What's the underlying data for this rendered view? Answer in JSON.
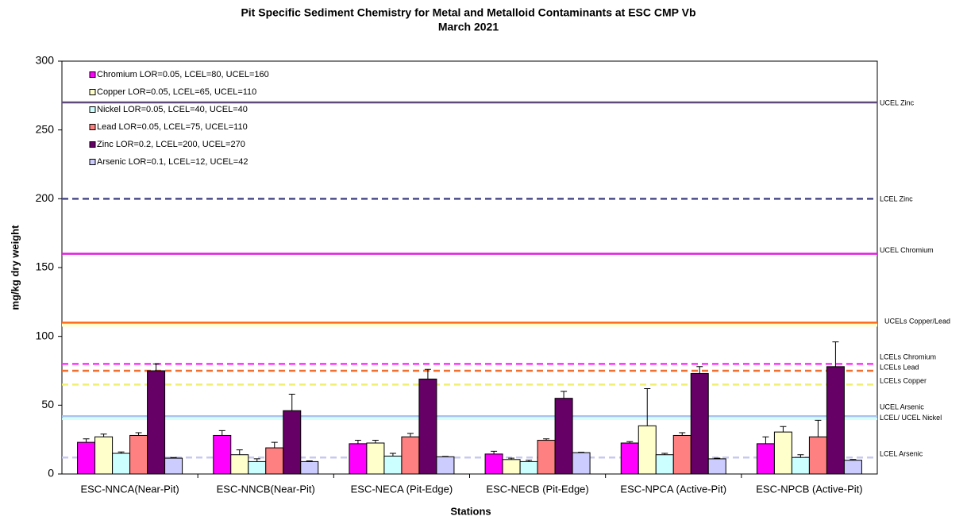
{
  "chart_data": {
    "type": "bar",
    "title": "Pit Specific Sediment Chemistry for Metal and Metalloid Contaminants at ESC CMP Vb",
    "subtitle": "March 2021",
    "x_label": "Stations",
    "y_label": "mg/kg dry weight",
    "categories": [
      "ESC-NNCA(Near-Pit)",
      "ESC-NNCB(Near-Pit)",
      "ESC-NECA (Pit-Edge)",
      "ESC-NECB (Pit-Edge)",
      "ESC-NPCA (Active-Pit)",
      "ESC-NPCB (Active-Pit)"
    ],
    "series": [
      {
        "name": "Chromium LOR=0.05, LCEL=80, UCEL=160",
        "color": "#ff00ff",
        "values": [
          23,
          28,
          22,
          14.5,
          22.5,
          22
        ],
        "errors": [
          2.5,
          3.5,
          2.5,
          2,
          1,
          5
        ]
      },
      {
        "name": "Copper LOR=0.05, LCEL=65, UCEL=110",
        "color": "#ffffcc",
        "values": [
          27,
          14,
          22.5,
          10.5,
          35,
          30.5
        ],
        "errors": [
          2,
          3.5,
          2,
          1,
          27,
          4
        ]
      },
      {
        "name": "Nickel LOR=0.05, LCEL=40, UCEL=40",
        "color": "#ccffff",
        "values": [
          15,
          9,
          13,
          9,
          14,
          12
        ],
        "errors": [
          1,
          2,
          2,
          1,
          1,
          2
        ]
      },
      {
        "name": "Lead LOR=0.05, LCEL=75, UCEL=110",
        "color": "#ff8080",
        "values": [
          28,
          19,
          27,
          24.5,
          28,
          27
        ],
        "errors": [
          2,
          4,
          2.5,
          1,
          2,
          12
        ]
      },
      {
        "name": "Zinc LOR=0.2, LCEL=200, UCEL=270",
        "color": "#660066",
        "values": [
          75,
          46,
          69,
          55,
          73,
          78
        ],
        "errors": [
          5,
          12,
          7,
          5,
          5,
          18
        ]
      },
      {
        "name": "Arsenic LOR=0.1, LCEL=12, UCEL=42",
        "color": "#ccccff",
        "values": [
          11.5,
          9,
          12.5,
          15.5,
          11,
          10
        ],
        "errors": [
          0.5,
          0.5,
          0.3,
          0.3,
          0.5,
          0.5
        ]
      }
    ],
    "reference_lines": [
      {
        "value": 270,
        "label": "UCEL Zinc",
        "color": "#604a7b",
        "dashed": false
      },
      {
        "value": 200,
        "label": "LCEL Zinc",
        "color": "#4b4b8a",
        "dashed": true
      },
      {
        "value": 160,
        "label": "UCEL Chromium",
        "color": "#e020e0",
        "dashed": false
      },
      {
        "value": 110,
        "label": "UCELs Copper/Lead",
        "color": "#ff6a1a",
        "band_color": "#ffffcc",
        "dashed": false
      },
      {
        "value": 80,
        "label": "LCELs Chromium",
        "color": "#ff33ff",
        "dashed": true
      },
      {
        "value": 75,
        "label": "LCELs Lead",
        "color": "#f07030",
        "dashed": true
      },
      {
        "value": 65,
        "label": "LCELs Copper",
        "color": "#f0f070",
        "dashed": true
      },
      {
        "value": 42,
        "label": "UCEL Arsenic",
        "color": "#a8c4f0",
        "dashed": false
      },
      {
        "value": 40,
        "label": "LCEL/ UCEL Nickel",
        "color": "#ccffff",
        "dashed": false
      },
      {
        "value": 12,
        "label": "LCEL Arsenic",
        "color": "#c8c8f0",
        "dashed": true
      }
    ],
    "ylim": [
      0,
      300
    ],
    "yticks": [
      0,
      50,
      100,
      150,
      200,
      250,
      300
    ],
    "grid": false,
    "legend": "upper left"
  }
}
